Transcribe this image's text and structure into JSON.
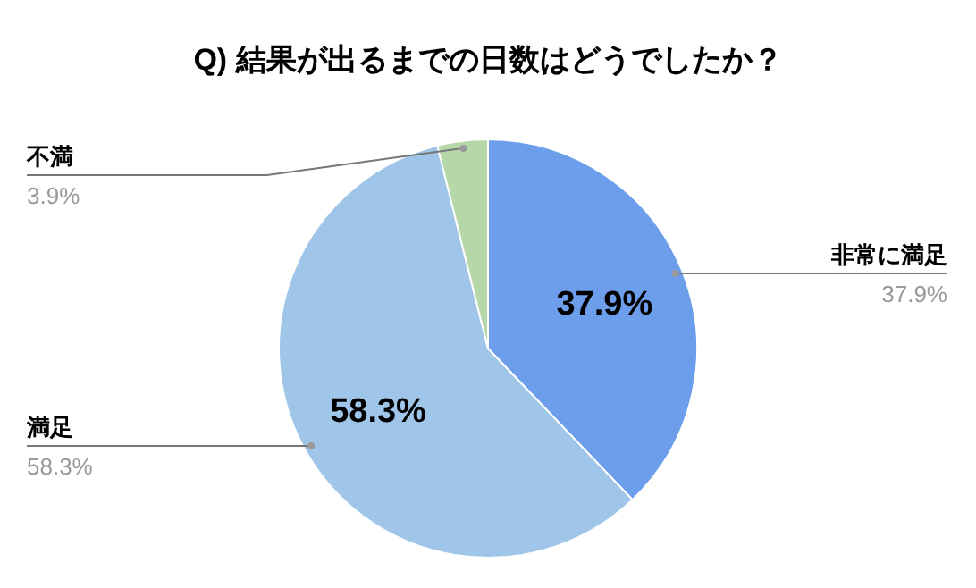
{
  "chart_data": {
    "type": "pie",
    "title": "Q) 結果が出るまでの日数はどうでしたか？",
    "categories": [
      "非常に満足",
      "満足",
      "不満"
    ],
    "values": [
      37.9,
      58.3,
      3.9
    ],
    "colors": [
      "#6d9eeb",
      "#9fc5e8",
      "#b6d7a8"
    ],
    "value_labels": [
      "37.9%",
      "58.3%",
      "3.9%"
    ],
    "legend": false
  }
}
